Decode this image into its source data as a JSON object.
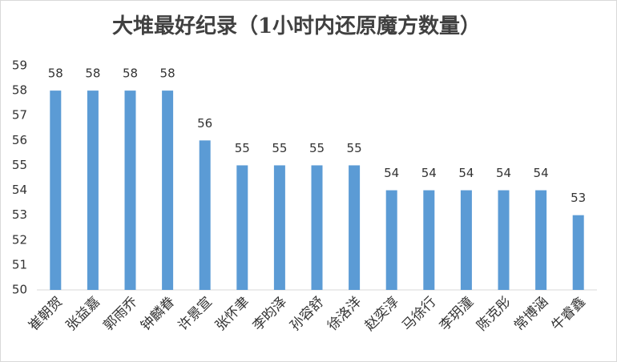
{
  "chart_data": {
    "type": "bar",
    "title": "大堆最好纪录（1小时内还原魔方数量）",
    "categories": [
      "崔朝贺",
      "张益嘉",
      "郭雨乔",
      "钟麟眷",
      "许景宣",
      "张怀聿",
      "李昀泽",
      "孙容舒",
      "徐洛洋",
      "赵奕淳",
      "马徐行",
      "李玥潼",
      "陈克彤",
      "常博涵",
      "牛睿鑫"
    ],
    "values": [
      58,
      58,
      58,
      58,
      56,
      55,
      55,
      55,
      55,
      54,
      54,
      54,
      54,
      54,
      53
    ],
    "color": "#5b9bd5",
    "ylim": [
      50,
      59
    ],
    "yticks": [
      50,
      51,
      52,
      53,
      54,
      55,
      56,
      57,
      58,
      59
    ],
    "grid": false
  }
}
